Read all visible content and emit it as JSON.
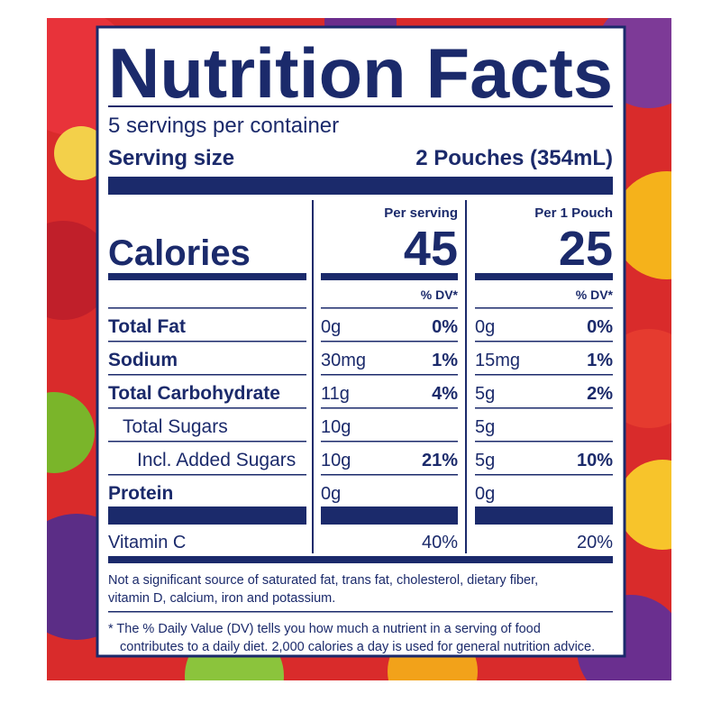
{
  "label": {
    "title": "Nutrition Facts",
    "servings": "5 servings per container",
    "serving_size": {
      "label": "Serving size",
      "value": "2 Pouches (354mL)"
    },
    "calories": {
      "label": "Calories",
      "columns": [
        {
          "header": "Per serving",
          "value": 45
        },
        {
          "header": "Per 1 Pouch",
          "value": 25
        }
      ]
    },
    "dv_header": [
      "% DV*",
      "% DV*"
    ],
    "rows": [
      {
        "name": "Total Fat",
        "bold": true,
        "indent": 0,
        "cells": [
          {
            "amount": "0g",
            "dv": "0%"
          },
          {
            "amount": "0g",
            "dv": "0%"
          }
        ]
      },
      {
        "name": "Sodium",
        "bold": true,
        "indent": 0,
        "cells": [
          {
            "amount": "30mg",
            "dv": "1%"
          },
          {
            "amount": "15mg",
            "dv": "1%"
          }
        ]
      },
      {
        "name": "Total Carbohydrate",
        "bold": true,
        "indent": 0,
        "cells": [
          {
            "amount": "11g",
            "dv": "4%"
          },
          {
            "amount": "5g",
            "dv": "2%"
          }
        ]
      },
      {
        "name": "Total Sugars",
        "bold": false,
        "indent": 1,
        "cells": [
          {
            "amount": "10g"
          },
          {
            "amount": "5g"
          }
        ]
      },
      {
        "name": "Incl. Added Sugars",
        "bold": false,
        "indent": 2,
        "cells": [
          {
            "amount": "10g",
            "dv": "21%"
          },
          {
            "amount": "5g",
            "dv": "10%"
          }
        ]
      },
      {
        "name": "Protein",
        "bold": true,
        "indent": 0,
        "cells": [
          {
            "amount": "0g"
          },
          {
            "amount": "0g"
          }
        ]
      }
    ],
    "vitamins": [
      {
        "name": "Vitamin C",
        "cells": [
          {
            "dv": "40%"
          },
          {
            "dv": "20%"
          }
        ]
      }
    ],
    "footnotes": [
      [
        "Not a significant source of saturated fat, trans fat, cholesterol, dietary fiber,",
        "vitamin D, calcium, iron and potassium."
      ],
      [
        "* The % Daily Value (DV) tells you how much a nutrient in a serving of food",
        "contributes to a daily diet. 2,000 calories a day is used for general nutrition advice."
      ]
    ]
  }
}
